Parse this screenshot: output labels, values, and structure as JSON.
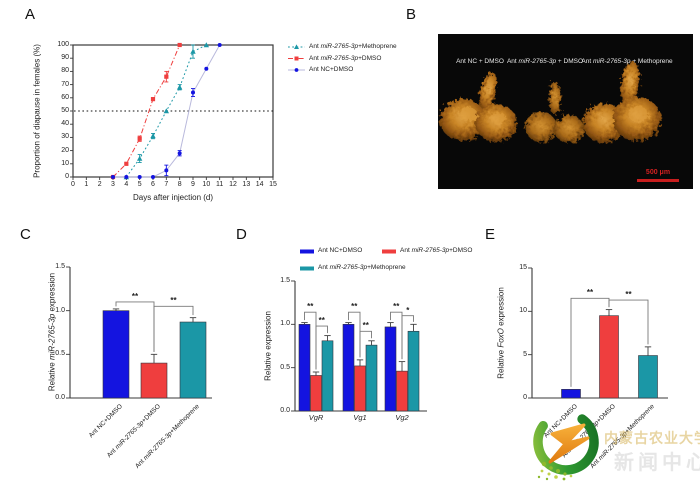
{
  "colors": {
    "blue": "#1414E0",
    "red": "#EF3E3E",
    "teal": "#1B97A6",
    "blue_line": "#B9B9DC",
    "axis": "#3a3a3a",
    "error": "#3f3f3f",
    "bracket": "#787878",
    "scalebar_red": "#C81E1E"
  },
  "panels": {
    "A": {
      "letter": "A"
    },
    "B": {
      "letter": "B"
    },
    "C": {
      "letter": "C"
    },
    "D": {
      "letter": "D"
    },
    "E": {
      "letter": "E"
    }
  },
  "photo": {
    "labels": [
      "Ant NC + DMSO",
      "Ant *miR-2765-3p* + DMSO",
      "Ant *miR-2765-3p* + Methoprene"
    ],
    "scale_bar": "500 μm"
  },
  "watermark": {
    "line1": "内蒙古农业大学",
    "line2": "新闻中心"
  },
  "chart_data": [
    {
      "panel": "A",
      "type": "line",
      "title": "",
      "xlabel": "Days after injection (d)",
      "ylabel": "Proportion of diapause in females (%)",
      "xlim": [
        0,
        15
      ],
      "ylim": [
        0,
        100
      ],
      "xticks": [
        "0",
        "1",
        "2",
        "3",
        "4",
        "5",
        "6",
        "7",
        "8",
        "9",
        "10",
        "11",
        "12",
        "13",
        "14",
        "15"
      ],
      "yticks": [
        "0",
        "10",
        "20",
        "30",
        "40",
        "50",
        "60",
        "70",
        "80",
        "90",
        "100"
      ],
      "refline_y": 50,
      "grid": false,
      "legend_position": "outside-right-top",
      "series": [
        {
          "name": "Ant *miR-2765-3p*+Methoprene",
          "color": "#1B97A6",
          "line": "dotted",
          "marker": "triangle",
          "points": [
            {
              "x": 4,
              "y": 0
            },
            {
              "x": 5,
              "y": 14,
              "e": 3
            },
            {
              "x": 6,
              "y": 31,
              "e": 2
            },
            {
              "x": 7,
              "y": 50
            },
            {
              "x": 8,
              "y": 68,
              "e": 2
            },
            {
              "x": 9,
              "y": 95,
              "e": 5
            },
            {
              "x": 10,
              "y": 100
            }
          ]
        },
        {
          "name": "Ant *miR-2765-3p*+DMSO",
          "color": "#EF3E3E",
          "line": "dashdot",
          "marker": "square",
          "points": [
            {
              "x": 3,
              "y": 0
            },
            {
              "x": 4,
              "y": 10
            },
            {
              "x": 5,
              "y": 29,
              "e": 2
            },
            {
              "x": 6,
              "y": 59
            },
            {
              "x": 7,
              "y": 76,
              "e": 4
            },
            {
              "x": 8,
              "y": 100
            }
          ]
        },
        {
          "name": "Ant NC+DMSO",
          "color": "#1414E0",
          "line_color": "#B9B9DC",
          "line": "solid",
          "marker": "circle",
          "points": [
            {
              "x": 3,
              "y": 0
            },
            {
              "x": 4,
              "y": 0
            },
            {
              "x": 5,
              "y": 0
            },
            {
              "x": 6,
              "y": 0
            },
            {
              "x": 7,
              "y": 5,
              "e": 4
            },
            {
              "x": 8,
              "y": 18,
              "e": 2
            },
            {
              "x": 9,
              "y": 64,
              "e": 3
            },
            {
              "x": 10,
              "y": 82
            },
            {
              "x": 11,
              "y": 100
            }
          ]
        }
      ]
    },
    {
      "panel": "C",
      "type": "bar",
      "ylabel": "Relative *miR-2765-3p* expression",
      "ylim": [
        0,
        1.5
      ],
      "yticks": [
        "0.0",
        "0.5",
        "1.0",
        "1.5"
      ],
      "categories": [
        "Ant NC+DMSO",
        "Ant *miR-2765-3p*+DMSO",
        "Ant *miR-2765-3p*+Methoprene"
      ],
      "values": [
        1.0,
        0.4,
        0.87
      ],
      "errors": [
        0.02,
        0.1,
        0.05
      ],
      "bar_colors": [
        "#1414E0",
        "#EF3E3E",
        "#1B97A6"
      ],
      "significance": [
        {
          "a": 0,
          "b": 1,
          "label": "**",
          "y": 1.1
        },
        {
          "a": 1,
          "b": 2,
          "label": "**",
          "y": 1.05
        }
      ]
    },
    {
      "panel": "D",
      "type": "bar",
      "grouped": true,
      "ylabel": "Relative expression",
      "ylim": [
        0,
        1.5
      ],
      "yticks": [
        "0.0",
        "0.5",
        "1.0",
        "1.5"
      ],
      "categories": [
        "*VgR*",
        "*Vg1*",
        "*Vg2*"
      ],
      "legend_position": "top",
      "series": [
        {
          "name": "Ant NC+DMSO",
          "color": "#1414E0",
          "values": [
            1.0,
            1.0,
            0.97
          ],
          "errors": [
            0.02,
            0.02,
            0.05
          ]
        },
        {
          "name": "Ant *miR-2765-3p*+DMSO",
          "color": "#EF3E3E",
          "values": [
            0.41,
            0.52,
            0.46
          ],
          "errors": [
            0.04,
            0.07,
            0.11
          ]
        },
        {
          "name": "Ant *miR-2765-3p*+Methoprene",
          "color": "#1B97A6",
          "values": [
            0.81,
            0.76,
            0.92
          ],
          "errors": [
            0.06,
            0.05,
            0.08
          ]
        }
      ],
      "significance": [
        {
          "cat": 0,
          "a": 0,
          "b": 1,
          "label": "**",
          "y": 1.14
        },
        {
          "cat": 0,
          "a": 1,
          "b": 2,
          "label": "**",
          "y": 0.98
        },
        {
          "cat": 1,
          "a": 0,
          "b": 1,
          "label": "**",
          "y": 1.14
        },
        {
          "cat": 1,
          "a": 1,
          "b": 2,
          "label": "**",
          "y": 0.92
        },
        {
          "cat": 2,
          "a": 0,
          "b": 1,
          "label": "**",
          "y": 1.14
        },
        {
          "cat": 2,
          "a": 1,
          "b": 2,
          "label": "*",
          "y": 1.1
        }
      ]
    },
    {
      "panel": "E",
      "type": "bar",
      "ylabel": "Relative *FoxO* expression",
      "ylim": [
        0,
        15
      ],
      "yticks": [
        "0",
        "5",
        "10",
        "15"
      ],
      "categories": [
        "Ant NC+DMSO",
        "Ant *miR-2765-3p*+DMSO",
        "Ant *miR-2765-3p*+Methoprene"
      ],
      "values": [
        1.0,
        9.5,
        4.9
      ],
      "errors": [
        0,
        0.7,
        1.0
      ],
      "bar_colors": [
        "#1414E0",
        "#EF3E3E",
        "#1B97A6"
      ],
      "significance": [
        {
          "a": 0,
          "b": 1,
          "label": "**",
          "y": 11.5
        },
        {
          "a": 1,
          "b": 2,
          "label": "**",
          "y": 11.3
        }
      ]
    }
  ]
}
